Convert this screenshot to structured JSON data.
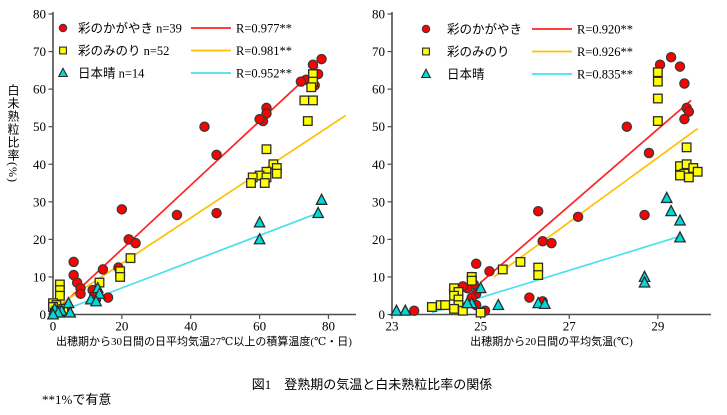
{
  "figure": {
    "caption": "図1　登熟期の気温と白未熟粒比率の関係",
    "footnote": "**1%で有意"
  },
  "chart_data": [
    {
      "type": "scatter",
      "title": "",
      "xlabel": "出穂期から30日間の日平均気温27℃以上の積算温度(℃・日)",
      "ylabel": "白未熟粒比率(%)",
      "xlim": [
        0,
        88
      ],
      "xticks": [
        0,
        20,
        40,
        60,
        80
      ],
      "ylim": [
        0,
        80
      ],
      "yticks": [
        0,
        10,
        20,
        30,
        40,
        50,
        60,
        70,
        80
      ],
      "grid": false,
      "legend_position": "top-left-inside",
      "series": [
        {
          "name": "彩のかがやき",
          "legend_label": "彩のかがやき n=39",
          "r_label": "R=0.977**",
          "marker": "circle",
          "marker_color": "#ff0000",
          "marker_stroke": "#3a3a3a",
          "line_color": "#ff2222",
          "trend": [
            [
              2,
              2
            ],
            [
              77,
              66
            ]
          ],
          "points": [
            [
              78,
              68
            ],
            [
              75.5,
              66.5
            ],
            [
              77,
              64
            ],
            [
              73.5,
              62.5
            ],
            [
              76,
              61
            ],
            [
              72,
              62
            ],
            [
              62,
              55
            ],
            [
              62,
              53.5
            ],
            [
              61,
              51.5
            ],
            [
              60,
              52
            ],
            [
              44,
              50
            ],
            [
              47.5,
              42.5
            ],
            [
              36,
              26.5
            ],
            [
              47.5,
              27
            ],
            [
              20,
              28
            ],
            [
              22,
              20
            ],
            [
              24,
              19
            ],
            [
              6,
              14
            ],
            [
              6,
              10.5
            ],
            [
              14.5,
              12
            ],
            [
              19,
              12.5
            ],
            [
              7,
              8.5
            ],
            [
              8,
              7
            ],
            [
              8,
              5.5
            ],
            [
              11.5,
              6.5
            ],
            [
              12,
              5
            ],
            [
              16,
              4.5
            ],
            [
              12.5,
              4
            ],
            [
              4,
              1.5
            ],
            [
              2,
              1
            ]
          ]
        },
        {
          "name": "彩のみのり",
          "legend_label": "彩のみのり n=52",
          "r_label": "R=0.981**",
          "marker": "square",
          "marker_color": "#ffff00",
          "marker_stroke": "#2b2b2b",
          "line_color": "#ffc000",
          "trend": [
            [
              2.5,
              3
            ],
            [
              85,
              53
            ]
          ],
          "points": [
            [
              75.5,
              64
            ],
            [
              75.5,
              62
            ],
            [
              75,
              60.5
            ],
            [
              73,
              57
            ],
            [
              75.5,
              57
            ],
            [
              74,
              51.5
            ],
            [
              62,
              44
            ],
            [
              64,
              40
            ],
            [
              65,
              39
            ],
            [
              62,
              38
            ],
            [
              60,
              37
            ],
            [
              58,
              36.5
            ],
            [
              62,
              36.5
            ],
            [
              65,
              37.5
            ],
            [
              57.5,
              35
            ],
            [
              61.5,
              35
            ],
            [
              22.5,
              15
            ],
            [
              19.5,
              11.5
            ],
            [
              19.5,
              10
            ],
            [
              13.5,
              8.5
            ],
            [
              2,
              8
            ],
            [
              2,
              6.5
            ],
            [
              2,
              5
            ],
            [
              0,
              3
            ],
            [
              1,
              2.5
            ],
            [
              0,
              2
            ],
            [
              3,
              1.5
            ],
            [
              1,
              1
            ],
            [
              2,
              0.5
            ],
            [
              0.5,
              0.5
            ]
          ]
        },
        {
          "name": "日本晴",
          "legend_label": "日本晴 n=14",
          "r_label": "R=0.952**",
          "marker": "triangle",
          "marker_color": "#00d9d9",
          "marker_stroke": "#2b2b2b",
          "line_color": "#49e1e9",
          "trend": [
            [
              5.5,
              2
            ],
            [
              77,
              27
            ]
          ],
          "points": [
            [
              78,
              30.5
            ],
            [
              77,
              27
            ],
            [
              60,
              24.5
            ],
            [
              60,
              20
            ],
            [
              13,
              7
            ],
            [
              13.5,
              5.5
            ],
            [
              11,
              4
            ],
            [
              12.5,
              3.5
            ],
            [
              4.5,
              3
            ],
            [
              2.5,
              1
            ],
            [
              0.5,
              1.5
            ],
            [
              1.5,
              0.5
            ],
            [
              5,
              0.5
            ],
            [
              0,
              0
            ]
          ]
        }
      ]
    },
    {
      "type": "scatter",
      "title": "",
      "xlabel": "出穂期から20日間の平均気温(℃)",
      "ylabel": "",
      "xlim": [
        23,
        30.2
      ],
      "xticks": [
        23,
        25,
        27,
        29
      ],
      "ylim": [
        0,
        80
      ],
      "yticks": [
        0,
        10,
        20,
        30,
        40,
        50,
        60,
        70,
        80
      ],
      "grid": false,
      "legend_position": "top-left-inside",
      "series": [
        {
          "name": "彩のかがやき",
          "legend_label": "彩のかがやき",
          "r_label": "R=0.920**",
          "marker": "circle",
          "marker_color": "#ff0000",
          "marker_stroke": "#3a3a3a",
          "line_color": "#ff2222",
          "trend": [
            [
              25,
              8.5
            ],
            [
              29.75,
              57
            ]
          ],
          "points": [
            [
              29.3,
              68.5
            ],
            [
              29.05,
              66.5
            ],
            [
              29.5,
              66
            ],
            [
              29.6,
              61.5
            ],
            [
              29.65,
              55
            ],
            [
              29.7,
              54
            ],
            [
              29.6,
              52
            ],
            [
              28.3,
              50
            ],
            [
              28.8,
              43
            ],
            [
              26.3,
              27.5
            ],
            [
              27.2,
              26
            ],
            [
              28.7,
              26.5
            ],
            [
              26.4,
              19.5
            ],
            [
              26.6,
              19
            ],
            [
              24.9,
              13.5
            ],
            [
              25.2,
              11.5
            ],
            [
              24.8,
              10
            ],
            [
              24.85,
              8
            ],
            [
              24.7,
              7
            ],
            [
              24.6,
              7.5
            ],
            [
              24.9,
              5.5
            ],
            [
              24.8,
              4.5
            ],
            [
              24.4,
              6.5
            ],
            [
              26.1,
              4.5
            ],
            [
              26.4,
              3.5
            ],
            [
              25.1,
              1
            ],
            [
              23.5,
              1
            ],
            [
              24.9,
              2.5
            ]
          ]
        },
        {
          "name": "彩のみのり",
          "legend_label": "彩のみのり",
          "r_label": "R=0.926**",
          "marker": "square",
          "marker_color": "#ffff00",
          "marker_stroke": "#2b2b2b",
          "line_color": "#ffc000",
          "trend": [
            [
              25.3,
              10
            ],
            [
              29.9,
              49.5
            ]
          ],
          "points": [
            [
              29,
              64.5
            ],
            [
              29,
              62
            ],
            [
              29,
              57.5
            ],
            [
              29,
              51.5
            ],
            [
              29.65,
              44.5
            ],
            [
              29.5,
              39.5
            ],
            [
              29.65,
              40
            ],
            [
              29.8,
              39
            ],
            [
              29.9,
              38
            ],
            [
              29.6,
              37.5
            ],
            [
              29.5,
              37
            ],
            [
              29.7,
              36.5
            ],
            [
              25.9,
              14
            ],
            [
              25.5,
              12
            ],
            [
              26.3,
              12.5
            ],
            [
              26.3,
              10.5
            ],
            [
              24.8,
              10
            ],
            [
              24.8,
              9
            ],
            [
              24.4,
              7
            ],
            [
              24.5,
              6
            ],
            [
              24.4,
              5
            ],
            [
              24.5,
              4
            ],
            [
              24.5,
              2.5
            ],
            [
              24.4,
              1.5
            ],
            [
              24.1,
              2.5
            ],
            [
              23.9,
              2
            ],
            [
              24.2,
              2.5
            ],
            [
              24.6,
              1
            ],
            [
              25,
              0.5
            ]
          ]
        },
        {
          "name": "日本晴",
          "legend_label": "日本晴",
          "r_label": "R=0.835**",
          "marker": "triangle",
          "marker_color": "#00d9d9",
          "marker_stroke": "#2b2b2b",
          "line_color": "#49e1e9",
          "trend": [
            [
              23.9,
              0.5
            ],
            [
              29.55,
              21
            ]
          ],
          "points": [
            [
              29.2,
              31
            ],
            [
              29.3,
              27.5
            ],
            [
              29.5,
              25
            ],
            [
              29.5,
              20.5
            ],
            [
              28.7,
              10
            ],
            [
              28.7,
              8.5
            ],
            [
              25,
              7
            ],
            [
              24.8,
              3
            ],
            [
              24.7,
              3
            ],
            [
              25.4,
              2.5
            ],
            [
              26.3,
              3
            ],
            [
              26.45,
              2.8
            ],
            [
              23.3,
              1
            ],
            [
              23.1,
              1
            ]
          ]
        }
      ]
    }
  ]
}
